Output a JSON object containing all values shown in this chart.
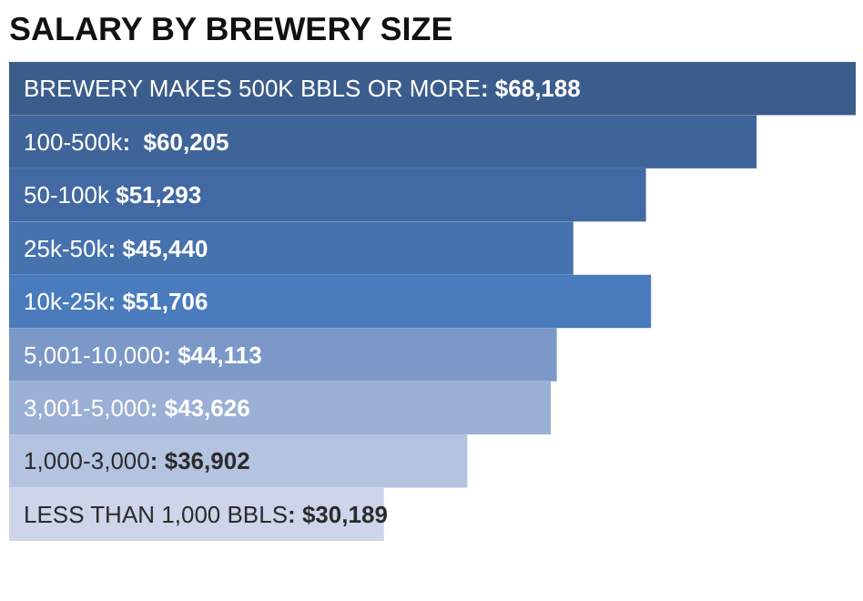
{
  "chart_data": {
    "type": "bar",
    "orientation": "horizontal",
    "title": "SALARY BY BREWERY SIZE",
    "categories": [
      "BREWERY MAKES 500K BBLS OR MORE",
      "100-500k",
      "50-100k",
      "25k-50k",
      "10k-25k",
      "5,001-10,000",
      "3,001-5,000",
      "1,000-3,000",
      "LESS THAN 1,000 BBLS"
    ],
    "values": [
      68188,
      60205,
      51293,
      45440,
      51706,
      44113,
      43626,
      36902,
      30189
    ],
    "value_labels": [
      ": $68,188",
      ":  $60,205",
      " $51,293",
      ": $45,440",
      ": $51,706",
      ": $44,113",
      ": $43,626",
      ": $36,902",
      ": $30,189"
    ],
    "colors": [
      "#3b5d8c",
      "#3f649a",
      "#4269a3",
      "#4673ae",
      "#4a7cbd",
      "#7b98c8",
      "#9bb0d5",
      "#b4c3e0",
      "#ccd5e9"
    ]
  }
}
